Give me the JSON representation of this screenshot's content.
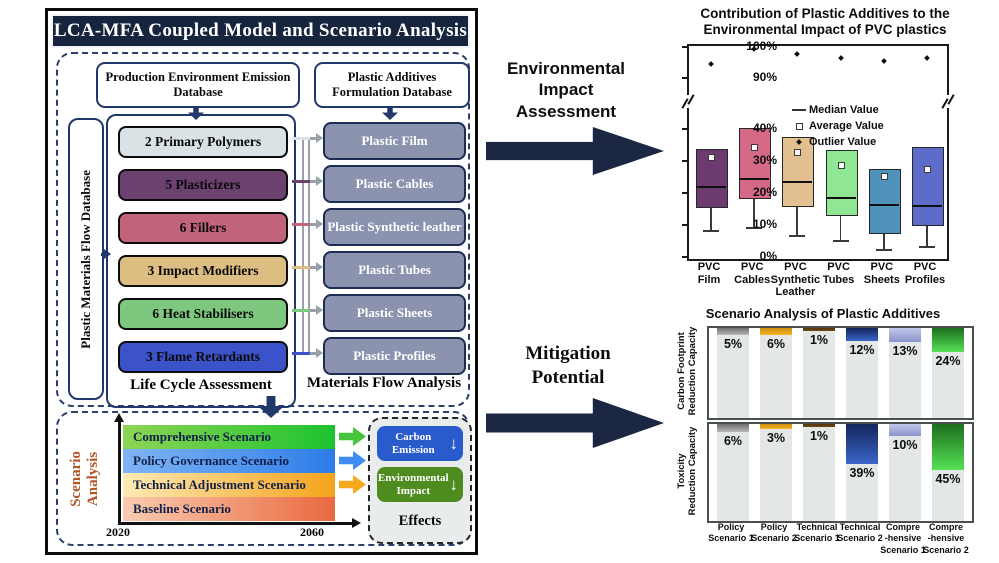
{
  "left_panel": {
    "title": "LCA-MFA Coupled Model and Scenario Analysis",
    "db_left": "Production Environment Emission Database",
    "db_right": "Plastic Additives Formulation Database",
    "side_db": "Plastic Materials Flow Database",
    "lca_caption": "Life Cycle Assessment",
    "lca_caption_color": "#3f9b1f",
    "mfa_caption": "Materials Flow Analysis",
    "mfa_caption_color": "#2038cc",
    "lca_items": [
      {
        "label": "2 Primary Polymers",
        "color": "#d9e3e5"
      },
      {
        "label": "5 Plasticizers",
        "color": "#6b4170"
      },
      {
        "label": "6 Fillers",
        "color": "#c2637c"
      },
      {
        "label": "3 Impact Modifiers",
        "color": "#dcbd82"
      },
      {
        "label": "6 Heat Stabilisers",
        "color": "#7dc87e"
      },
      {
        "label": "3 Flame Retardants",
        "color": "#3c52c8"
      }
    ],
    "mfa_items": [
      "Plastic Film",
      "Plastic Cables",
      "Plastic Synthetic leather",
      "Plastic Tubes",
      "Plastic Sheets",
      "Plastic Profiles"
    ],
    "mfa_box_color": "#8b93af",
    "scenario_label": "Scenario Analysis",
    "scenario_bars": [
      {
        "label": "Comprehensive Scenario",
        "from": "#8ed455",
        "to": "#1cc32e",
        "arrow": "#44c53c"
      },
      {
        "label": "Policy Governance Scenario",
        "from": "#7fb5f4",
        "to": "#2e7ce8",
        "arrow": "#3f8cf0"
      },
      {
        "label": "Technical Adjustment Scenario",
        "from": "#fdeab4",
        "to": "#f5a21c",
        "arrow": "#f6a81e"
      },
      {
        "label": "Baseline Scenario",
        "from": "#f9cbb0",
        "to": "#e9693f",
        "arrow": null
      }
    ],
    "x_start": "2020",
    "x_end": "2060",
    "effects_caption": "Effects",
    "effects_items": [
      {
        "label": "Carbon Emission",
        "color": "#2a5bcc"
      },
      {
        "label": "Environmental Impact",
        "color": "#4e8c1f"
      }
    ]
  },
  "middle": {
    "top_label": "Environmental Impact Assessment",
    "bottom_label": "Mitigation Potential",
    "arrow_color": "#1b2742"
  },
  "chart_data": [
    {
      "type": "boxplot",
      "title": "Contribution of Plastic Additives to the Environmental Impact of PVC plastics",
      "axis_break": {
        "lower_range": [
          0,
          45
        ],
        "upper_range": [
          88,
          101
        ]
      },
      "y_ticks_lower": [
        0,
        10,
        20,
        30,
        40
      ],
      "y_ticks_upper": [
        90,
        100
      ],
      "legend": [
        {
          "marker": "line",
          "label": "Median Value"
        },
        {
          "marker": "square",
          "label": "Average Value"
        },
        {
          "marker": "dot",
          "label": "Outlier Value"
        }
      ],
      "series": [
        {
          "category_lines": [
            "PVC",
            "Film"
          ],
          "low": 9,
          "q1": 16.5,
          "median": 22.5,
          "q3": 34.5,
          "mean": 32,
          "outliers": [
            95
          ],
          "color": "#6d3a70"
        },
        {
          "category_lines": [
            "PVC",
            "Cables"
          ],
          "low": 10,
          "q1": 19.5,
          "median": 25,
          "q3": 41,
          "mean": 35,
          "outliers": [
            100
          ],
          "color": "#d66a86"
        },
        {
          "category_lines": [
            "PVC",
            "Synthetic",
            "Leather"
          ],
          "low": 7.5,
          "q1": 17,
          "median": 24,
          "q3": 38,
          "mean": 33.5,
          "outliers": [
            98.5
          ],
          "color": "#e2c08f"
        },
        {
          "category_lines": [
            "PVC",
            "Tubes"
          ],
          "low": 6,
          "q1": 14,
          "median": 19,
          "q3": 34,
          "mean": 29.5,
          "outliers": [
            97
          ],
          "color": "#8fe794"
        },
        {
          "category_lines": [
            "PVC",
            "Sheets"
          ],
          "low": 3,
          "q1": 8.5,
          "median": 17,
          "q3": 28,
          "mean": 26,
          "outliers": [
            96
          ],
          "color": "#4f93bb"
        },
        {
          "category_lines": [
            "PVC",
            "Profiles"
          ],
          "low": 4,
          "q1": 11,
          "median": 16.5,
          "q3": 35,
          "mean": 28,
          "outliers": [
            97
          ],
          "color": "#5c6cc8"
        }
      ]
    },
    {
      "type": "bar",
      "title": "Scenario Analysis of Plastic Additives",
      "rows": [
        {
          "label_lines": [
            "Carbon Footprint",
            "Reduction Capacity"
          ],
          "values": [
            5,
            6,
            1,
            12,
            13,
            24
          ]
        },
        {
          "label_lines": [
            "Toxicity",
            "Reduction Capacity"
          ],
          "values": [
            6,
            3,
            1,
            39,
            10,
            45
          ]
        }
      ],
      "categories": [
        [
          "Policy",
          "Scenario 1"
        ],
        [
          "Policy",
          "Scenario 2"
        ],
        [
          "Technical",
          "Scenario 1"
        ],
        [
          "Technical",
          "Scenario 2"
        ],
        [
          "Compre",
          "-hensive",
          "Scenario 1"
        ],
        [
          "Compre",
          "-hensive",
          "Scenario 2"
        ]
      ],
      "segment_colors": [
        [
          "#6f6f6f",
          "#b9b9b9"
        ],
        [
          "#cf8e0a",
          "#f2b428"
        ],
        [
          "#513809",
          "#6b4b12"
        ],
        [
          "#12255d",
          "#3a65c8"
        ],
        [
          "#c3c9ec",
          "#8a93cc"
        ],
        [
          "#1d6e1d",
          "#55e255"
        ]
      ],
      "track_color": "#e3e7e5",
      "ylim": [
        0,
        100
      ]
    }
  ]
}
